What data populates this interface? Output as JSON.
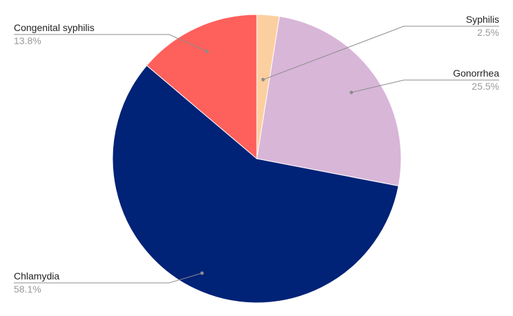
{
  "chart_data": {
    "type": "pie",
    "title": "",
    "start_angle_deg": 0,
    "direction": "clockwise",
    "slices": [
      {
        "label": "Syphilis",
        "value": 2.5,
        "percent_label": "2.5%",
        "color": "#fccfa0"
      },
      {
        "label": "Gonorrhea",
        "value": 25.5,
        "percent_label": "25.5%",
        "color": "#d8b6d8"
      },
      {
        "label": "Chlamydia",
        "value": 58.1,
        "percent_label": "58.1%",
        "color": "#002277"
      },
      {
        "label": "Congenital syphilis",
        "value": 13.8,
        "percent_label": "13.8%",
        "color": "#fe605c"
      }
    ],
    "legend": "none",
    "data_labels": "outside-with-leader-lines"
  }
}
